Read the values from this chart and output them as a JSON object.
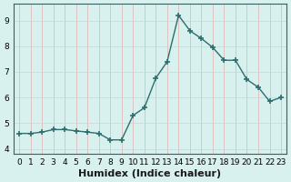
{
  "x": [
    0,
    1,
    2,
    3,
    4,
    5,
    6,
    7,
    8,
    9,
    10,
    11,
    12,
    13,
    14,
    15,
    16,
    17,
    18,
    19,
    20,
    21,
    22,
    23
  ],
  "y": [
    4.6,
    4.6,
    4.65,
    4.75,
    4.75,
    4.7,
    4.65,
    4.6,
    4.35,
    4.35,
    5.3,
    5.6,
    6.75,
    7.4,
    9.2,
    8.6,
    8.3,
    7.95,
    7.45,
    7.45,
    6.7,
    6.4,
    5.85,
    6.0
  ],
  "line_color": "#2d6e6e",
  "marker": "+",
  "marker_size": 4,
  "marker_linewidth": 1.2,
  "bg_color": "#d8f0ee",
  "grid_color_h": "#c0d8d8",
  "grid_color_v": "#e0b0b0",
  "xlabel": "Humidex (Indice chaleur)",
  "xlim": [
    -0.5,
    23.5
  ],
  "ylim": [
    3.8,
    9.65
  ],
  "yticks": [
    4,
    5,
    6,
    7,
    8,
    9
  ],
  "xticks": [
    0,
    1,
    2,
    3,
    4,
    5,
    6,
    7,
    8,
    9,
    10,
    11,
    12,
    13,
    14,
    15,
    16,
    17,
    18,
    19,
    20,
    21,
    22,
    23
  ],
  "tick_label_fontsize": 6.5,
  "xlabel_fontsize": 8,
  "spine_color": "#3a6060",
  "line_width": 1.0
}
